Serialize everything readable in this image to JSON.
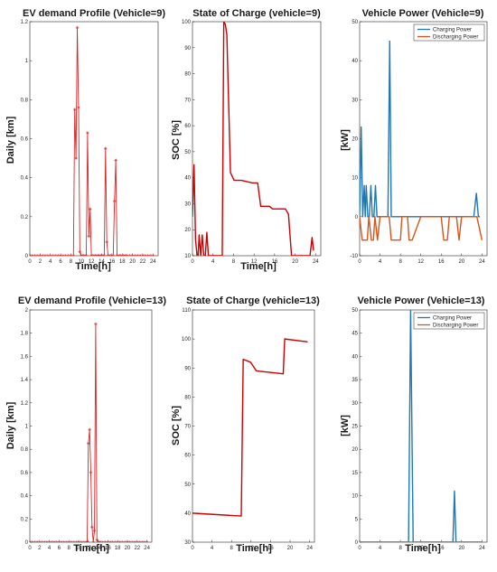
{
  "chart_data": [
    {
      "type": "line",
      "title": "EV demand Profile (Vehicle=9)",
      "xlabel": "Time[h]",
      "ylabel": "Daily [km]",
      "xlim": [
        0,
        25
      ],
      "ylim": [
        0,
        1.2
      ],
      "xticks": [
        0,
        2,
        4,
        6,
        8,
        10,
        12,
        14,
        16,
        18,
        20,
        22,
        24
      ],
      "yticks": [
        0,
        0.2,
        0.4,
        0.6,
        0.8,
        1,
        1.2
      ],
      "ytick_labels": [
        "0",
        "0.2",
        "0.4",
        "0.6",
        "0.8",
        "1",
        "1.2"
      ],
      "marker": "star",
      "series": [
        {
          "color": "#d62728",
          "x": [
            0,
            0.5,
            1,
            1.5,
            2,
            2.5,
            3,
            3.5,
            4,
            4.5,
            5,
            5.5,
            6,
            6.5,
            7,
            7.5,
            8,
            8.5,
            8.75,
            9,
            9.25,
            9.5,
            9.75,
            10,
            10.25,
            10.5,
            10.75,
            11,
            11.25,
            11.5,
            11.75,
            12,
            12.25,
            12.5,
            12.75,
            13,
            13.25,
            13.5,
            13.75,
            14,
            14.25,
            14.5,
            14.75,
            15,
            15.25,
            15.5,
            15.75,
            16,
            16.25,
            16.5,
            16.75,
            17,
            17.25,
            17.5,
            17.75,
            18,
            18.25,
            18.5,
            18.75,
            19,
            19.5,
            20,
            20.5,
            21,
            21.5,
            22,
            22.5,
            23,
            23.5,
            24
          ],
          "y": [
            0,
            0,
            0,
            0,
            0,
            0,
            0,
            0,
            0,
            0,
            0,
            0,
            0,
            0,
            0,
            0,
            0,
            0,
            0.75,
            0.5,
            1.17,
            0.76,
            0.02,
            0,
            0,
            0,
            0,
            0,
            0.63,
            0.1,
            0.24,
            0,
            0,
            0,
            0,
            0,
            0,
            0,
            0,
            0,
            0,
            0,
            0.55,
            0.07,
            0,
            0,
            0,
            0,
            0,
            0.28,
            0.49,
            0,
            0,
            0,
            0,
            0,
            0,
            0,
            0,
            0,
            0,
            0,
            0,
            0,
            0,
            0,
            0,
            0,
            0,
            0
          ]
        }
      ]
    },
    {
      "type": "line",
      "title": "State of Charge (vehicle=9)",
      "xlabel": "Time[h]",
      "ylabel": "SOC [%]",
      "xlim": [
        0,
        25
      ],
      "ylim": [
        10,
        100
      ],
      "xticks": [
        0,
        4,
        8,
        12,
        16,
        20,
        24
      ],
      "yticks": [
        10,
        20,
        30,
        40,
        50,
        60,
        70,
        80,
        90,
        100
      ],
      "series": [
        {
          "color": "#cc0000",
          "x": [
            0,
            0.3,
            0.6,
            0.9,
            1.1,
            1.3,
            1.6,
            1.9,
            2.2,
            2.5,
            2.8,
            3.1,
            3.4,
            3.7,
            4,
            5.6,
            5.8,
            6.1,
            6.4,
            6.7,
            7.4,
            8.1,
            9.5,
            11.7,
            12.7,
            13.3,
            15,
            15.6,
            16.2,
            18.1,
            18.7,
            19.3,
            22.5,
            22.9,
            23.3,
            23.6
          ],
          "y": [
            25,
            45,
            16,
            10,
            10,
            18,
            10,
            18,
            10,
            10,
            19,
            10,
            10,
            10,
            10,
            10,
            10,
            100,
            99,
            95,
            42,
            39,
            39,
            38,
            38,
            29,
            29,
            28,
            28,
            28,
            26,
            10,
            10,
            10,
            17,
            12
          ]
        }
      ]
    },
    {
      "type": "line",
      "title": "Vehicle Power (Vehicle=9)",
      "xlabel": "",
      "ylabel": "[kW]",
      "xlim": [
        0,
        25
      ],
      "ylim": [
        -10,
        50
      ],
      "xticks": [
        0,
        4,
        8,
        12,
        16,
        20,
        24
      ],
      "yticks": [
        -10,
        0,
        10,
        20,
        30,
        40,
        50
      ],
      "legend": "top-right",
      "series": [
        {
          "name": "Charging Power",
          "color": "#1f77b4",
          "x": [
            0,
            0.3,
            0.6,
            0.9,
            1.1,
            1.3,
            1.6,
            1.9,
            2.2,
            2.5,
            2.8,
            3.1,
            3.4,
            3.7,
            4,
            5.3,
            5.55,
            5.9,
            6.2,
            22.4,
            22.9,
            23.3,
            23.6
          ],
          "y": [
            0,
            23,
            0,
            8,
            0,
            8,
            0,
            0,
            8,
            0,
            0,
            8,
            0,
            0,
            0,
            0,
            0,
            45,
            0,
            0,
            6,
            0,
            0
          ]
        },
        {
          "name": "Discharging Power",
          "color": "#d95319",
          "x": [
            0,
            0.5,
            1,
            1.5,
            1.8,
            2.3,
            2.7,
            3,
            3.5,
            4,
            4.5,
            5,
            5.5,
            5.8,
            6.2,
            6.6,
            7,
            8,
            8.3,
            8.6,
            9.4,
            9.7,
            10,
            10.3,
            12,
            12.4,
            12.8,
            16,
            16.5,
            17.2,
            17.6,
            18.2,
            19,
            19.5,
            20,
            22.2,
            22.6,
            23,
            24
          ],
          "y": [
            0,
            -6,
            -6,
            -6,
            0,
            -6,
            -6,
            0,
            -6,
            0,
            0,
            0,
            0,
            0,
            -6,
            -6,
            -6,
            -6,
            0,
            0,
            0,
            -6,
            -6,
            -6,
            0,
            0,
            0,
            0,
            -6,
            -6,
            0,
            0,
            0,
            -6,
            0,
            0,
            0,
            0,
            -6
          ]
        }
      ]
    },
    {
      "type": "line",
      "title": "EV demand Profile (Vehicle=13)",
      "xlabel": "Time[h]",
      "ylabel": "Daily [km]",
      "xlim": [
        0,
        25
      ],
      "ylim": [
        0,
        2
      ],
      "xticks": [
        0,
        2,
        4,
        6,
        8,
        10,
        12,
        14,
        16,
        18,
        20,
        22,
        24
      ],
      "yticks": [
        0,
        0.2,
        0.4,
        0.6,
        0.8,
        1,
        1.2,
        1.4,
        1.6,
        1.8,
        2
      ],
      "ytick_labels": [
        "0",
        "0.2",
        "0.4",
        "0.6",
        "0.8",
        "1",
        "1.2",
        "1.4",
        "1.6",
        "1.8",
        "2"
      ],
      "marker": "star",
      "series": [
        {
          "color": "#d62728",
          "x": [
            0,
            0.5,
            1,
            1.5,
            2,
            2.5,
            3,
            3.5,
            4,
            4.5,
            5,
            5.5,
            6,
            6.5,
            7,
            7.5,
            8,
            8.5,
            9,
            9.5,
            10,
            10.5,
            11,
            11.5,
            11.75,
            12,
            12.25,
            12.5,
            12.75,
            13,
            13.25,
            13.5,
            13.75,
            14,
            14.25,
            14.5,
            15,
            15.5,
            16,
            16.5,
            17,
            17.5,
            18,
            18.5,
            19,
            19.5,
            20,
            20.5,
            21,
            21.5,
            22,
            22.5,
            23,
            23.5,
            24
          ],
          "y": [
            0,
            0,
            0,
            0,
            0,
            0,
            0,
            0,
            0,
            0,
            0,
            0,
            0,
            0,
            0,
            0,
            0,
            0,
            0,
            0,
            0,
            0,
            0,
            0,
            0,
            0.85,
            0.97,
            0.6,
            0.13,
            0,
            0.1,
            1.88,
            0.02,
            0,
            0,
            0,
            0,
            0,
            0,
            0,
            0,
            0,
            0,
            0,
            0,
            0,
            0,
            0,
            0,
            0,
            0,
            0,
            0,
            0,
            0
          ]
        }
      ]
    },
    {
      "type": "line",
      "title": "State of Charge (vehicle=13)",
      "xlabel": "Time[h]",
      "ylabel": "SOC [%]",
      "xlim": [
        0,
        25
      ],
      "ylim": [
        30,
        110
      ],
      "xticks": [
        0,
        4,
        8,
        12,
        16,
        20,
        24
      ],
      "yticks": [
        30,
        40,
        50,
        60,
        70,
        80,
        90,
        100,
        110
      ],
      "series": [
        {
          "color": "#cc0000",
          "x": [
            0,
            10,
            10.4,
            11.9,
            12.3,
            12.7,
            13.1,
            18.6,
            18.9,
            23.6
          ],
          "y": [
            40,
            39,
            93,
            92,
            91,
            90,
            89,
            88,
            100,
            99
          ]
        }
      ]
    },
    {
      "type": "line",
      "title": "Vehicle Power (Vehicle=13)",
      "xlabel": "Time[h]",
      "ylabel": "[kW]",
      "xlim": [
        0,
        25
      ],
      "ylim": [
        0,
        50
      ],
      "xticks": [
        0,
        4,
        8,
        12,
        16,
        20,
        24
      ],
      "yticks": [
        0,
        5,
        10,
        15,
        20,
        25,
        30,
        35,
        40,
        45,
        50
      ],
      "legend": "top-right",
      "series": [
        {
          "name": "Charging Power",
          "color": "#1f77b4",
          "x": [
            0,
            9.6,
            10,
            10.5,
            18.3,
            18.6,
            18.9,
            24
          ],
          "y": [
            0,
            0,
            50,
            0,
            0,
            11,
            0,
            0
          ]
        },
        {
          "name": "Discharging Power",
          "color": "#d95319",
          "x": [
            0,
            24
          ],
          "y": [
            0,
            0
          ]
        }
      ]
    }
  ]
}
